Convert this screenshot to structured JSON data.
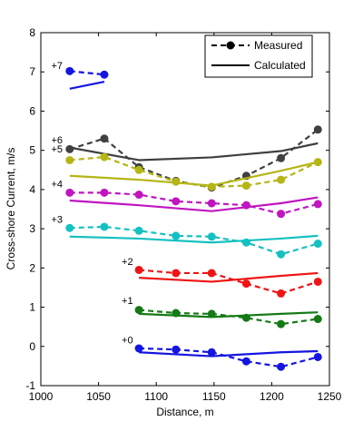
{
  "chart_data": {
    "type": "line",
    "xlabel": "Distance, m",
    "ylabel": "Cross-shore Current, m/s",
    "xlim": [
      1000,
      1250
    ],
    "ylim": [
      -1,
      8
    ],
    "xticks": [
      1000,
      1050,
      1100,
      1150,
      1200,
      1250
    ],
    "yticks": [
      -1,
      0,
      1,
      2,
      3,
      4,
      5,
      6,
      7,
      8
    ],
    "legend": {
      "position": "top-right",
      "entries": [
        {
          "label": "Measured",
          "style": "dashed-marker"
        },
        {
          "label": "Calculated",
          "style": "solid"
        }
      ]
    },
    "series": [
      {
        "name": "+7",
        "color": "#1515e0",
        "measured": {
          "x": [
            1025,
            1055
          ],
          "y": [
            7.02,
            6.93
          ]
        },
        "calculated": {
          "x": [
            1025,
            1055
          ],
          "y": [
            6.57,
            6.75
          ]
        }
      },
      {
        "name": "+6",
        "color": "#404040",
        "measured": {
          "x": [
            1025,
            1055,
            1085,
            1117,
            1148,
            1178,
            1208,
            1240
          ],
          "y": [
            5.03,
            5.3,
            4.57,
            4.22,
            4.05,
            4.35,
            4.8,
            5.53
          ]
        },
        "calculated": {
          "x": [
            1025,
            1085,
            1148,
            1208,
            1240
          ],
          "y": [
            5.07,
            4.75,
            4.82,
            4.98,
            5.18
          ]
        }
      },
      {
        "name": "+5",
        "color": "#b5b515",
        "measured": {
          "x": [
            1025,
            1055,
            1085,
            1117,
            1148,
            1178,
            1208,
            1240
          ],
          "y": [
            4.75,
            4.83,
            4.5,
            4.2,
            4.07,
            4.1,
            4.25,
            4.7
          ]
        },
        "calculated": {
          "x": [
            1025,
            1085,
            1148,
            1208,
            1240
          ],
          "y": [
            4.35,
            4.25,
            4.1,
            4.48,
            4.7
          ]
        }
      },
      {
        "name": "+4",
        "color": "#c015c0",
        "measured": {
          "x": [
            1025,
            1055,
            1085,
            1117,
            1148,
            1178,
            1208,
            1240
          ],
          "y": [
            3.92,
            3.92,
            3.87,
            3.7,
            3.65,
            3.6,
            3.38,
            3.63
          ]
        },
        "calculated": {
          "x": [
            1025,
            1085,
            1148,
            1208,
            1240
          ],
          "y": [
            3.72,
            3.6,
            3.45,
            3.65,
            3.8
          ]
        }
      },
      {
        "name": "+3",
        "color": "#15c0c0",
        "measured": {
          "x": [
            1025,
            1055,
            1085,
            1117,
            1148,
            1178,
            1208,
            1240
          ],
          "y": [
            3.02,
            3.05,
            2.95,
            2.82,
            2.8,
            2.65,
            2.35,
            2.62
          ]
        },
        "calculated": {
          "x": [
            1025,
            1085,
            1148,
            1208,
            1240
          ],
          "y": [
            2.8,
            2.75,
            2.65,
            2.75,
            2.82
          ]
        }
      },
      {
        "name": "+2",
        "color": "#ee1515",
        "measured": {
          "x": [
            1085,
            1117,
            1148,
            1178,
            1208,
            1240
          ],
          "y": [
            1.95,
            1.87,
            1.87,
            1.6,
            1.35,
            1.65
          ]
        },
        "calculated": {
          "x": [
            1085,
            1148,
            1208,
            1240
          ],
          "y": [
            1.75,
            1.65,
            1.8,
            1.87
          ]
        }
      },
      {
        "name": "+1",
        "color": "#157a15",
        "measured": {
          "x": [
            1085,
            1117,
            1148,
            1178,
            1208,
            1240
          ],
          "y": [
            0.93,
            0.85,
            0.83,
            0.73,
            0.57,
            0.7
          ]
        },
        "calculated": {
          "x": [
            1085,
            1148,
            1208,
            1240
          ],
          "y": [
            0.83,
            0.75,
            0.83,
            0.87
          ]
        }
      },
      {
        "name": "+0",
        "color": "#1515e0",
        "measured": {
          "x": [
            1085,
            1117,
            1148,
            1178,
            1208,
            1240
          ],
          "y": [
            -0.05,
            -0.08,
            -0.15,
            -0.38,
            -0.52,
            -0.27
          ]
        },
        "calculated": {
          "x": [
            1085,
            1148,
            1208,
            1240
          ],
          "y": [
            -0.15,
            -0.25,
            -0.15,
            -0.12
          ]
        }
      }
    ],
    "series_labels": [
      {
        "text": "+7",
        "x": 1009,
        "y": 7.08
      },
      {
        "text": "+6",
        "x": 1009,
        "y": 5.18
      },
      {
        "text": "+5",
        "x": 1009,
        "y": 4.95
      },
      {
        "text": "+4",
        "x": 1009,
        "y": 4.05
      },
      {
        "text": "+3",
        "x": 1009,
        "y": 3.15
      },
      {
        "text": "+2",
        "x": 1070,
        "y": 2.08
      },
      {
        "text": "+1",
        "x": 1070,
        "y": 1.08
      },
      {
        "text": "+0",
        "x": 1070,
        "y": 0.08
      }
    ]
  }
}
